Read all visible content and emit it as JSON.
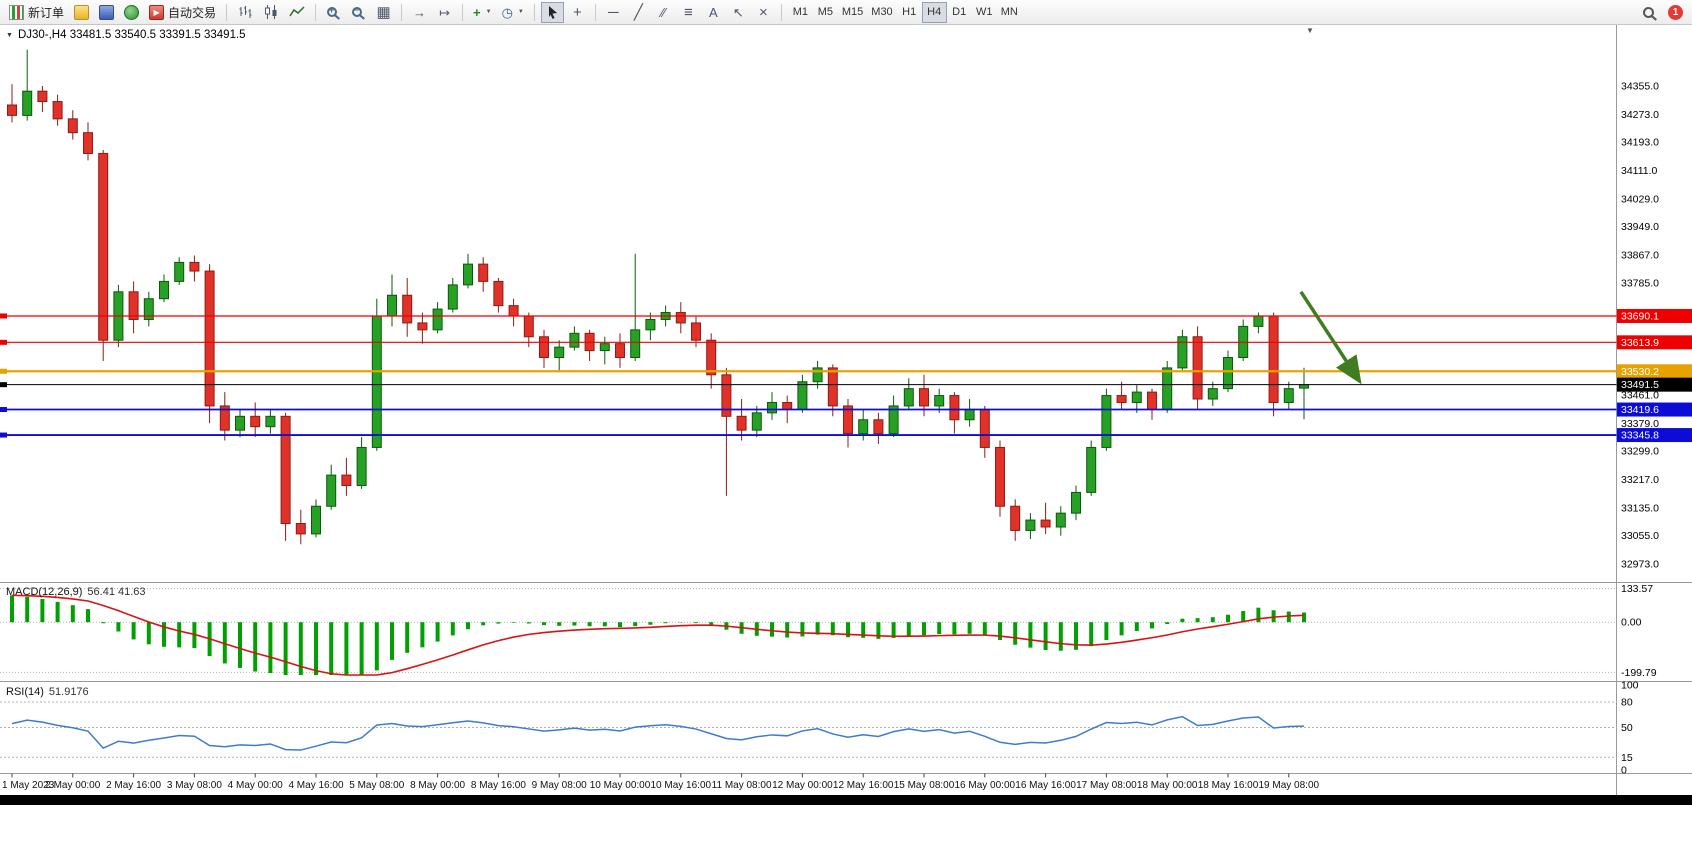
{
  "toolbar": {
    "new_order_label": "新订单",
    "autotrading_label": "自动交易",
    "timeframes": [
      "M1",
      "M5",
      "M15",
      "M30",
      "H1",
      "H4",
      "D1",
      "W1",
      "MN"
    ],
    "active_timeframe": "H4",
    "notification_badge": "1",
    "icon_glyphs": {
      "autotrading_play": "▶",
      "zoom_in_sign": "+",
      "zoom_out_sign": "−",
      "tile_windows": "▦",
      "auto_scroll": "→",
      "chart_shift": "↦",
      "new_chart_plus": "+",
      "dropdown_caret": "▼",
      "clock": "◷",
      "crosshair": "+",
      "horizontal_line": "─",
      "trend_line": "╱",
      "channel": "∕∕",
      "fibonacci": "≡",
      "text_tool": "A",
      "arrows_tool": "↖",
      "delete_tool": "×"
    }
  },
  "chart": {
    "title": "DJ30-,H4 33481.5 33540.5 33391.5 33491.5",
    "title_caret": "▼",
    "shift_marker": "▼"
  },
  "colors": {
    "up_candle": "#26a126",
    "up_stroke": "#0b5a0b",
    "down_candle": "#e03228",
    "down_stroke": "#8c1c14",
    "panel_border": "#9a9a9a",
    "grid_dotted": "#b0b0b0",
    "axis_text": "#000000",
    "tick": "#444444"
  },
  "chart_data": {
    "type": "candlestick",
    "symbol_period": "DJ30-,H4",
    "current_ohlc": {
      "open": 33481.5,
      "high": 33540.5,
      "low": 33391.5,
      "close": 33491.5
    },
    "y_axis_top_value": 34355.0,
    "y_axis_bottom_value": 32973.0,
    "y_axis_labels": [
      "34355.0",
      "34273.0",
      "34193.0",
      "34111.0",
      "34029.0",
      "33949.0",
      "33867.0",
      "33785.0",
      "33461.0",
      "33379.0",
      "33299.0",
      "33217.0",
      "33135.0",
      "33055.0",
      "32973.0"
    ],
    "x_tick_labels": [
      "1 May 2023",
      "2 May 00:00",
      "2 May 16:00",
      "3 May 08:00",
      "4 May 00:00",
      "4 May 16:00",
      "5 May 08:00",
      "8 May 00:00",
      "8 May 16:00",
      "9 May 08:00",
      "10 May 00:00",
      "10 May 16:00",
      "11 May 08:00",
      "12 May 00:00",
      "12 May 16:00",
      "15 May 08:00",
      "16 May 00:00",
      "16 May 16:00",
      "17 May 08:00",
      "18 May 00:00",
      "18 May 16:00",
      "19 May 08:00"
    ],
    "x_tick_indices": [
      0,
      4,
      8,
      12,
      16,
      20,
      24,
      28,
      32,
      36,
      40,
      44,
      48,
      52,
      56,
      60,
      64,
      68,
      72,
      76,
      80,
      84
    ],
    "horizontal_lines": [
      {
        "price": 33690.1,
        "label": "33690.1",
        "color": "#ee0000",
        "width": 1.2,
        "role": "resistance"
      },
      {
        "price": 33613.9,
        "label": "33613.9",
        "color": "#ee0000",
        "width": 1.2,
        "role": "resistance"
      },
      {
        "price": 33530.2,
        "label": "33530.2",
        "color": "#e8a200",
        "width": 2.2,
        "role": "pivot"
      },
      {
        "price": 33491.5,
        "label": "33491.5",
        "color": "#000000",
        "width": 1.0,
        "role": "current-price"
      },
      {
        "price": 33419.6,
        "label": "33419.6",
        "color": "#0c0cd6",
        "width": 1.8,
        "role": "support"
      },
      {
        "price": 33345.8,
        "label": "33345.8",
        "color": "#0c0cd6",
        "width": 1.8,
        "role": "support"
      }
    ],
    "candles_ohlc": [
      [
        34300,
        34360,
        34250,
        34270
      ],
      [
        34270,
        34460,
        34255,
        34340
      ],
      [
        34340,
        34355,
        34280,
        34310
      ],
      [
        34310,
        34330,
        34240,
        34260
      ],
      [
        34260,
        34285,
        34200,
        34220
      ],
      [
        34220,
        34250,
        34140,
        34160
      ],
      [
        34160,
        34170,
        33560,
        33620
      ],
      [
        33620,
        33780,
        33600,
        33760
      ],
      [
        33760,
        33790,
        33640,
        33680
      ],
      [
        33680,
        33760,
        33660,
        33740
      ],
      [
        33740,
        33810,
        33730,
        33790
      ],
      [
        33790,
        33860,
        33780,
        33845
      ],
      [
        33845,
        33865,
        33790,
        33820
      ],
      [
        33820,
        33840,
        33380,
        33430
      ],
      [
        33430,
        33470,
        33330,
        33360
      ],
      [
        33360,
        33420,
        33340,
        33400
      ],
      [
        33400,
        33440,
        33340,
        33370
      ],
      [
        33370,
        33420,
        33350,
        33400
      ],
      [
        33400,
        33410,
        33040,
        33090
      ],
      [
        33090,
        33130,
        33030,
        33060
      ],
      [
        33060,
        33160,
        33050,
        33140
      ],
      [
        33140,
        33260,
        33130,
        33230
      ],
      [
        33230,
        33280,
        33170,
        33200
      ],
      [
        33200,
        33340,
        33190,
        33310
      ],
      [
        33310,
        33740,
        33300,
        33690
      ],
      [
        33690,
        33810,
        33660,
        33750
      ],
      [
        33750,
        33800,
        33630,
        33670
      ],
      [
        33670,
        33700,
        33610,
        33650
      ],
      [
        33650,
        33730,
        33640,
        33710
      ],
      [
        33710,
        33800,
        33700,
        33780
      ],
      [
        33780,
        33870,
        33770,
        33840
      ],
      [
        33840,
        33860,
        33760,
        33790
      ],
      [
        33790,
        33800,
        33700,
        33720
      ],
      [
        33720,
        33740,
        33660,
        33690
      ],
      [
        33690,
        33700,
        33600,
        33630
      ],
      [
        33630,
        33650,
        33540,
        33570
      ],
      [
        33570,
        33620,
        33530,
        33600
      ],
      [
        33600,
        33660,
        33590,
        33640
      ],
      [
        33640,
        33650,
        33560,
        33590
      ],
      [
        33590,
        33630,
        33550,
        33610
      ],
      [
        33610,
        33640,
        33540,
        33570
      ],
      [
        33570,
        33870,
        33560,
        33650
      ],
      [
        33650,
        33700,
        33620,
        33680
      ],
      [
        33680,
        33720,
        33660,
        33700
      ],
      [
        33700,
        33730,
        33640,
        33670
      ],
      [
        33670,
        33690,
        33600,
        33620
      ],
      [
        33620,
        33640,
        33480,
        33520
      ],
      [
        33520,
        33540,
        33170,
        33400
      ],
      [
        33400,
        33450,
        33330,
        33360
      ],
      [
        33360,
        33430,
        33340,
        33410
      ],
      [
        33410,
        33470,
        33390,
        33440
      ],
      [
        33440,
        33460,
        33380,
        33420
      ],
      [
        33420,
        33520,
        33410,
        33500
      ],
      [
        33500,
        33560,
        33480,
        33540
      ],
      [
        33540,
        33550,
        33400,
        33430
      ],
      [
        33430,
        33450,
        33310,
        33350
      ],
      [
        33350,
        33420,
        33330,
        33390
      ],
      [
        33390,
        33410,
        33320,
        33350
      ],
      [
        33350,
        33460,
        33340,
        33430
      ],
      [
        33430,
        33510,
        33420,
        33480
      ],
      [
        33480,
        33520,
        33400,
        33430
      ],
      [
        33430,
        33480,
        33410,
        33460
      ],
      [
        33460,
        33470,
        33350,
        33390
      ],
      [
        33390,
        33450,
        33370,
        33420
      ],
      [
        33420,
        33430,
        33280,
        33310
      ],
      [
        33310,
        33330,
        33110,
        33140
      ],
      [
        33140,
        33160,
        33040,
        33070
      ],
      [
        33070,
        33120,
        33045,
        33100
      ],
      [
        33100,
        33150,
        33060,
        33080
      ],
      [
        33080,
        33140,
        33055,
        33120
      ],
      [
        33120,
        33200,
        33100,
        33180
      ],
      [
        33180,
        33330,
        33170,
        33310
      ],
      [
        33310,
        33480,
        33300,
        33460
      ],
      [
        33460,
        33500,
        33420,
        33440
      ],
      [
        33440,
        33490,
        33410,
        33470
      ],
      [
        33470,
        33480,
        33390,
        33420
      ],
      [
        33420,
        33560,
        33410,
        33540
      ],
      [
        33540,
        33650,
        33530,
        33630
      ],
      [
        33630,
        33660,
        33420,
        33450
      ],
      [
        33450,
        33500,
        33430,
        33480
      ],
      [
        33480,
        33590,
        33470,
        33570
      ],
      [
        33570,
        33680,
        33560,
        33660
      ],
      [
        33660,
        33700,
        33640,
        33690
      ],
      [
        33690,
        33700,
        33400,
        33440
      ],
      [
        33440,
        33500,
        33420,
        33480
      ],
      [
        33481.5,
        33540.5,
        33391.5,
        33491.5
      ]
    ],
    "indicators": {
      "macd": {
        "label_name": "MACD(12,26,9)",
        "label_values": "56.41 41.63",
        "axis_labels": [
          "133.57",
          "0.00",
          "-199.79"
        ],
        "params": {
          "fast": 12,
          "slow": 26,
          "signal": 9
        },
        "histogram_color": "#00a000",
        "signal_color": "#dd1111"
      },
      "rsi": {
        "label_name": "RSI(14)",
        "label_value": "51.9176",
        "axis_labels": [
          "100",
          "80",
          "50",
          "15",
          "0"
        ],
        "level_lines": [
          80,
          50,
          15
        ],
        "line_color": "#3e7bd0",
        "period": 14
      }
    },
    "annotation_arrow": {
      "start_index": 84.8,
      "start_price": 33760,
      "end_index": 88.6,
      "end_price": 33505,
      "color": "#3f7d20"
    }
  }
}
